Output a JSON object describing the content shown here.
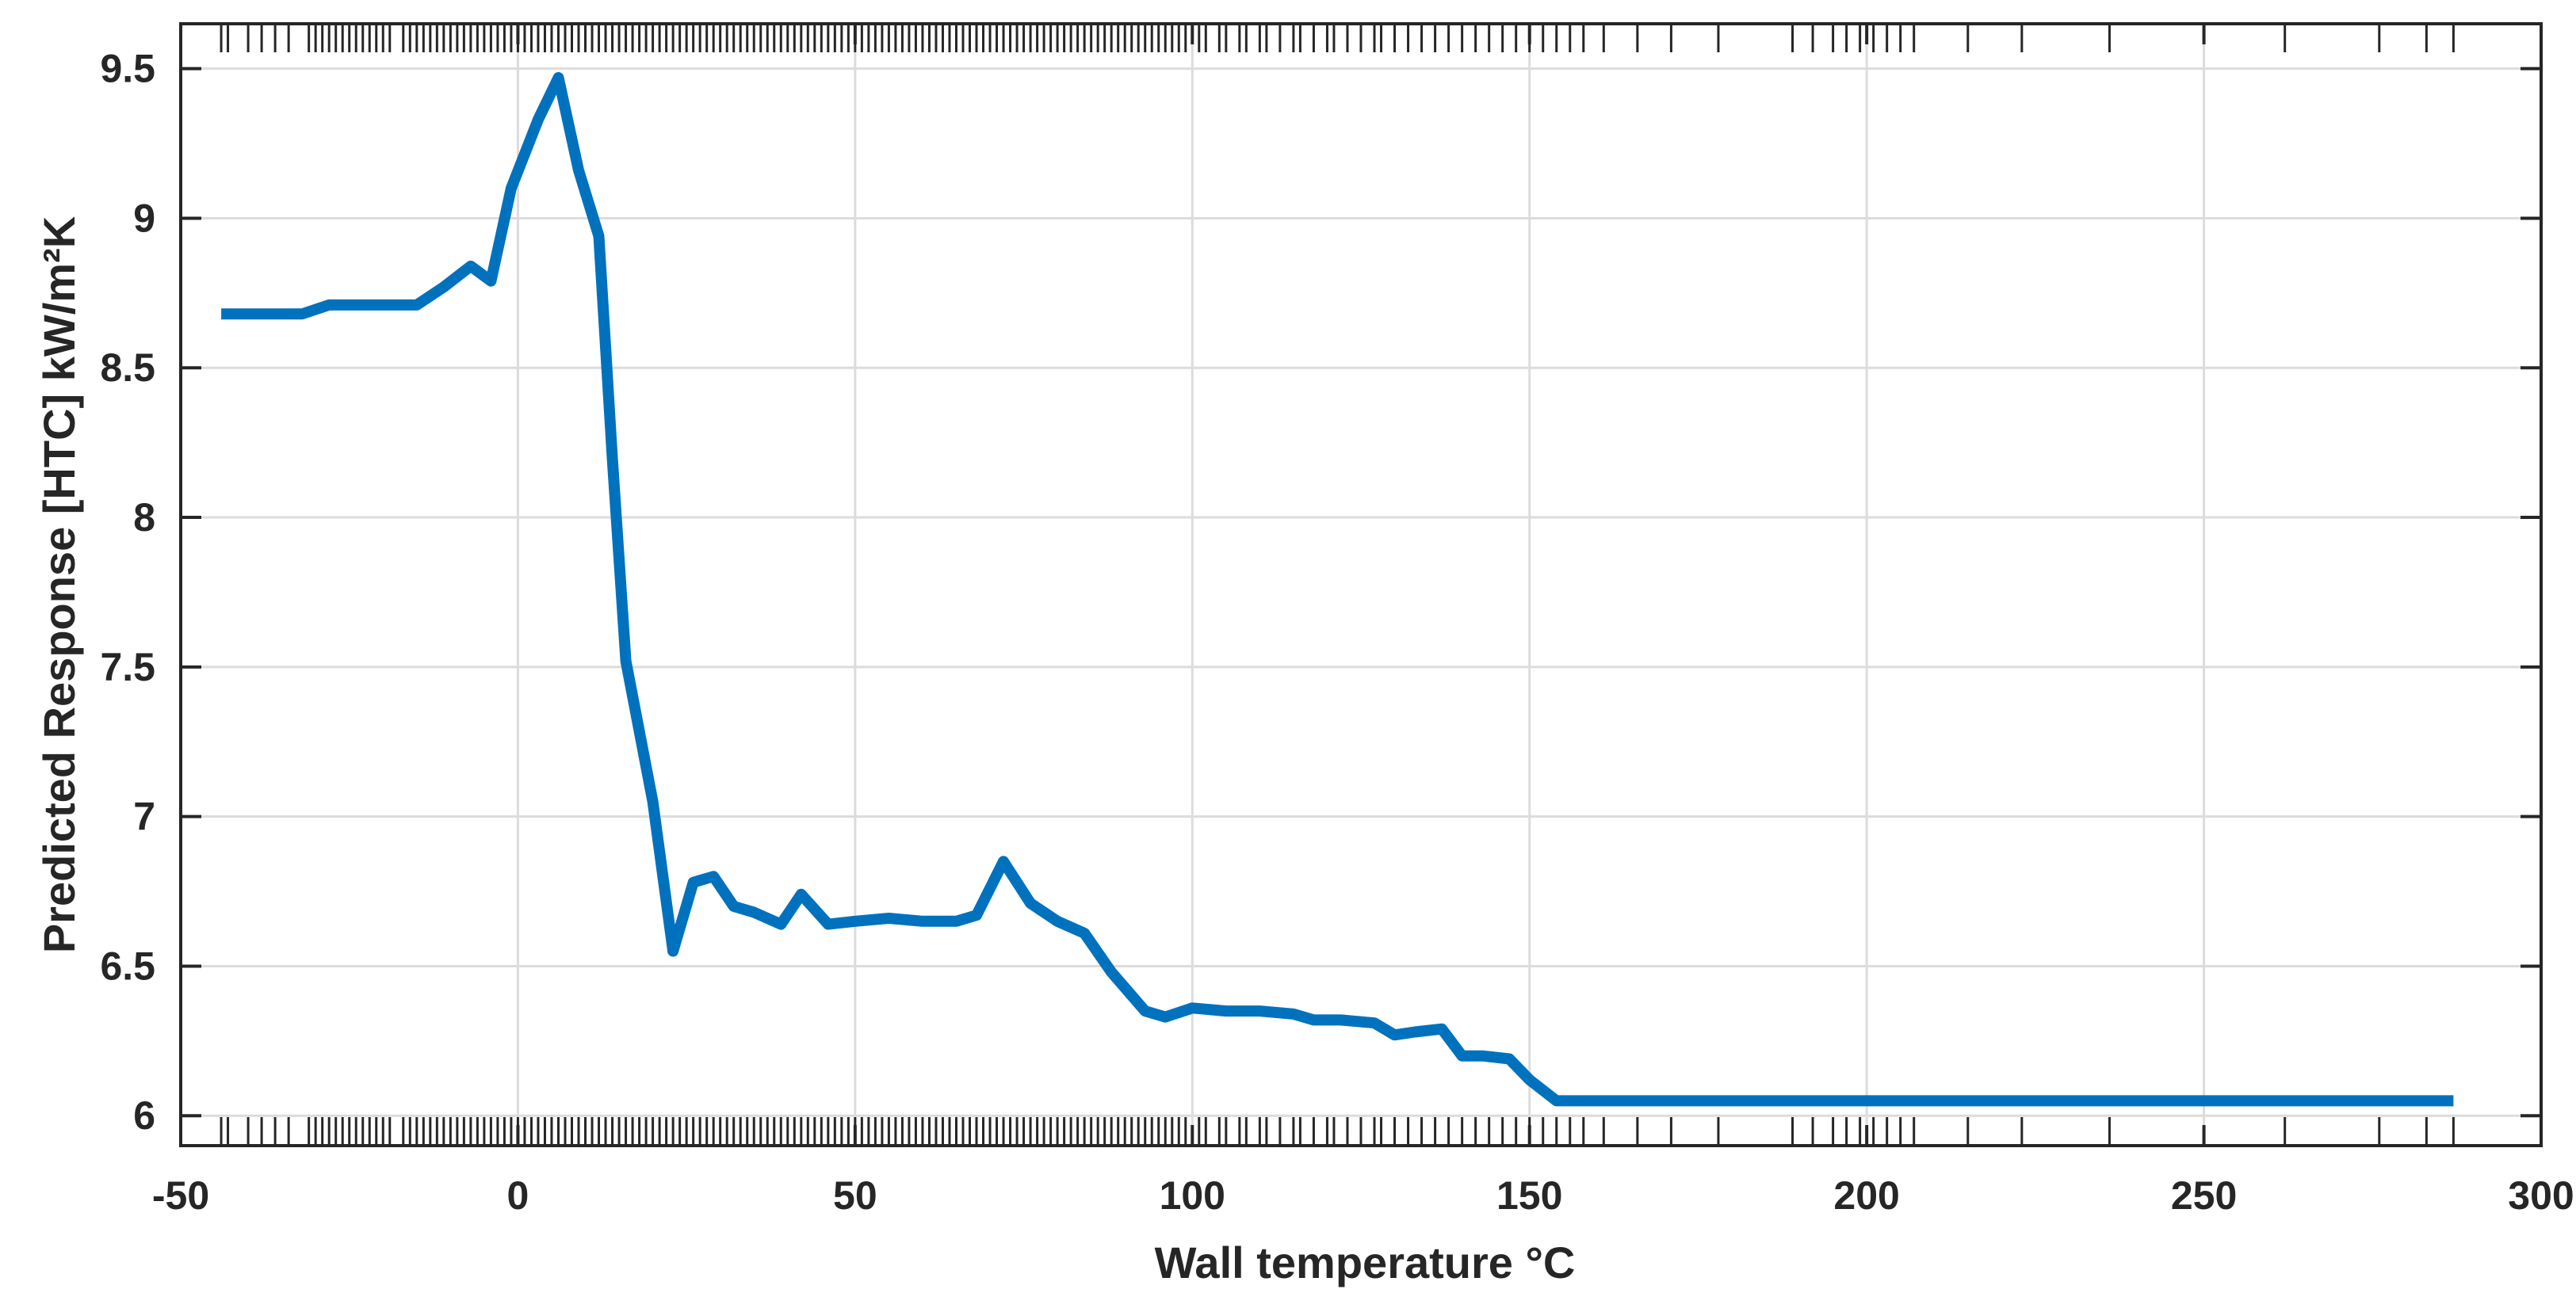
{
  "chart_data": {
    "type": "line",
    "title": "",
    "xlabel": "Wall temperature °C",
    "ylabel": "Predicted Response [HTC] kW/m²K",
    "xlim": [
      -50,
      300
    ],
    "ylim": [
      5.9,
      9.65
    ],
    "xticks": [
      -50,
      0,
      50,
      100,
      150,
      200,
      250,
      300
    ],
    "xtick_labels": [
      "-50",
      "0",
      "50",
      "100",
      "150",
      "200",
      "250",
      "300"
    ],
    "yticks": [
      6,
      6.5,
      7,
      7.5,
      8,
      8.5,
      9,
      9.5
    ],
    "ytick_labels": [
      "6",
      "6.5",
      "7",
      "7.5",
      "8",
      "8.5",
      "9",
      "9.5"
    ],
    "grid": true,
    "legend": "none",
    "series": [
      {
        "color": "#0072BD",
        "x": [
          -44,
          -38,
          -32,
          -28,
          -24,
          -20,
          -15,
          -11,
          -7,
          -4,
          -1,
          3,
          6,
          9,
          12,
          14,
          16,
          20,
          23,
          26,
          29,
          32,
          35,
          39,
          42,
          46,
          50,
          55,
          60,
          65,
          68,
          72,
          76,
          80,
          84,
          88,
          93,
          96,
          100,
          105,
          110,
          115,
          118,
          122,
          127,
          130,
          133,
          137,
          140,
          143,
          147,
          150,
          154,
          160,
          175,
          200,
          250,
          287
        ],
        "y": [
          8.68,
          8.68,
          8.68,
          8.71,
          8.71,
          8.71,
          8.71,
          8.77,
          8.84,
          8.79,
          9.1,
          9.33,
          9.47,
          9.16,
          8.94,
          8.2,
          7.52,
          7.05,
          6.55,
          6.78,
          6.8,
          6.7,
          6.68,
          6.64,
          6.74,
          6.64,
          6.65,
          6.66,
          6.65,
          6.65,
          6.67,
          6.85,
          6.71,
          6.65,
          6.61,
          6.48,
          6.35,
          6.33,
          6.36,
          6.35,
          6.35,
          6.34,
          6.32,
          6.32,
          6.31,
          6.27,
          6.28,
          6.29,
          6.2,
          6.2,
          6.19,
          6.12,
          6.05,
          6.05,
          6.05,
          6.05,
          6.05,
          6.05
        ]
      }
    ],
    "rug": [
      -44,
      -43,
      -40,
      -38,
      -36,
      -34,
      -31,
      -30,
      -29,
      -28,
      -27,
      -26,
      -25,
      -24,
      -23,
      -22,
      -21,
      -20,
      -19,
      -17,
      -16,
      -15,
      -14,
      -13,
      -12,
      -11,
      -10,
      -9,
      -8,
      -7,
      -6,
      -5,
      -4,
      -3,
      -2,
      -1,
      0,
      1,
      2,
      3,
      4,
      5,
      6,
      7,
      8,
      9,
      10,
      11,
      12,
      13,
      14,
      15,
      16,
      17,
      18,
      19,
      20,
      21,
      22,
      23,
      24,
      25,
      26,
      27,
      28,
      29,
      30,
      31,
      32,
      33,
      34,
      35,
      36,
      37,
      38,
      39,
      40,
      41,
      42,
      43,
      44,
      45,
      46,
      47,
      48,
      49,
      50,
      51,
      52,
      53,
      54,
      55,
      56,
      57,
      58,
      59,
      60,
      61,
      62,
      63,
      64,
      65,
      66,
      67,
      68,
      69,
      70,
      71,
      72,
      73,
      74,
      75,
      76,
      77,
      78,
      79,
      80,
      81,
      82,
      83,
      84,
      85,
      86,
      87,
      88,
      89,
      90,
      91,
      92,
      93,
      94,
      95,
      96,
      97,
      98,
      99,
      101,
      102,
      104,
      105,
      107,
      108,
      110,
      111,
      113,
      115,
      116,
      118,
      120,
      121,
      123,
      125,
      127,
      128,
      130,
      132,
      134,
      136,
      138,
      140,
      142,
      144,
      146,
      148,
      150,
      152,
      154,
      156,
      158,
      161,
      166,
      171,
      178,
      189,
      192,
      195,
      197,
      199,
      201,
      203,
      205,
      207,
      215,
      223,
      236,
      262,
      276,
      283,
      287
    ]
  }
}
